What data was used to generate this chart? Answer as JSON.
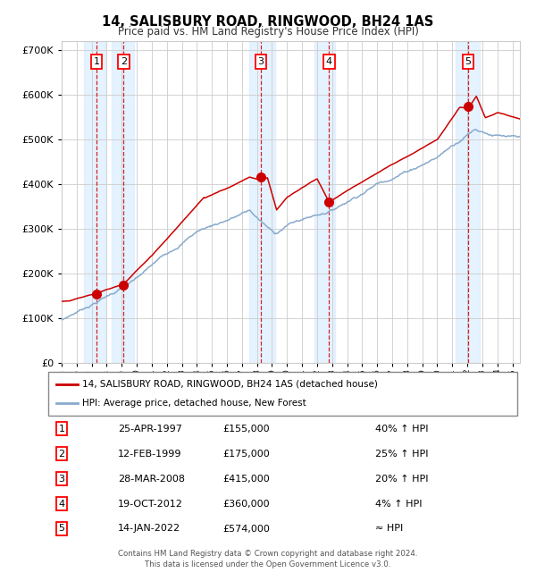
{
  "title": "14, SALISBURY ROAD, RINGWOOD, BH24 1AS",
  "subtitle": "Price paid vs. HM Land Registry's House Price Index (HPI)",
  "legend_line1": "14, SALISBURY ROAD, RINGWOOD, BH24 1AS (detached house)",
  "legend_line2": "HPI: Average price, detached house, New Forest",
  "footer1": "Contains HM Land Registry data © Crown copyright and database right 2024.",
  "footer2": "This data is licensed under the Open Government Licence v3.0.",
  "transactions": [
    {
      "num": 1,
      "date": "25-APR-1997",
      "price": 155000,
      "year": 1997.32,
      "hpi_rel": "40% ↑ HPI"
    },
    {
      "num": 2,
      "date": "12-FEB-1999",
      "price": 175000,
      "year": 1999.12,
      "hpi_rel": "25% ↑ HPI"
    },
    {
      "num": 3,
      "date": "28-MAR-2008",
      "price": 415000,
      "year": 2008.25,
      "hpi_rel": "20% ↑ HPI"
    },
    {
      "num": 4,
      "date": "19-OCT-2012",
      "price": 360000,
      "year": 2012.8,
      "hpi_rel": "4% ↑ HPI"
    },
    {
      "num": 5,
      "date": "14-JAN-2022",
      "price": 574000,
      "year": 2022.04,
      "hpi_rel": "≈ HPI"
    }
  ],
  "red_line_color": "#cc0000",
  "blue_line_color": "#88aacc",
  "dot_color": "#cc0000",
  "vline_color": "#cc0000",
  "shade_color": "#ddeeff",
  "grid_color": "#cccccc",
  "bg_color": "#ffffff",
  "xmin": 1995.0,
  "xmax": 2025.5,
  "ymin": 0,
  "ymax": 720000,
  "shade_pairs": [
    [
      1996.5,
      1997.9
    ],
    [
      1998.3,
      1999.8
    ],
    [
      2007.5,
      2009.2
    ],
    [
      2011.8,
      2013.2
    ],
    [
      2021.2,
      2022.8
    ]
  ]
}
